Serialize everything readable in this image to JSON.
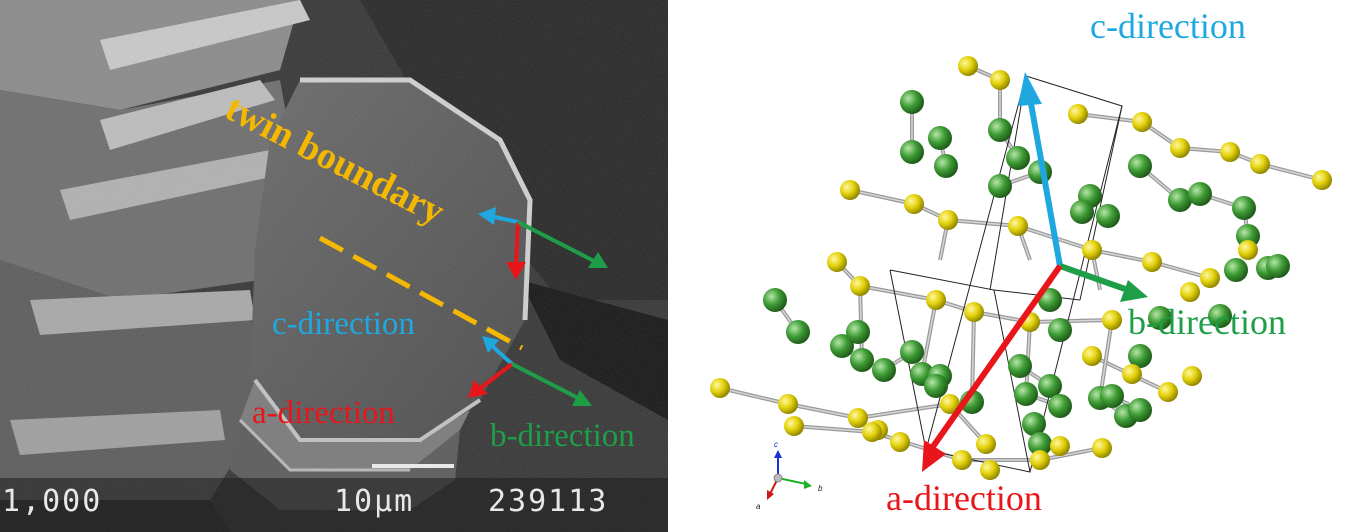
{
  "left_panel": {
    "twin_boundary_label": "twin boundary",
    "c_direction_label": "c-direction",
    "a_direction_label": "a-direction",
    "b_direction_label": "b-direction",
    "magnification_text": "1,000",
    "scale_text": "10µm",
    "image_number_text": "239113"
  },
  "right_panel": {
    "c_direction_label": "c-direction",
    "b_direction_label": "b-direction",
    "a_direction_label": "a-direction",
    "axis_triad": {
      "c": "c",
      "b": "b",
      "a": "a"
    }
  },
  "colors": {
    "c_axis": "#1fa8e0",
    "b_axis": "#1f9e48",
    "a_axis": "#e8161b",
    "twin_boundary": "#f5b800",
    "atom_yellow": "#e3d20a",
    "atom_green": "#3e9c35"
  }
}
